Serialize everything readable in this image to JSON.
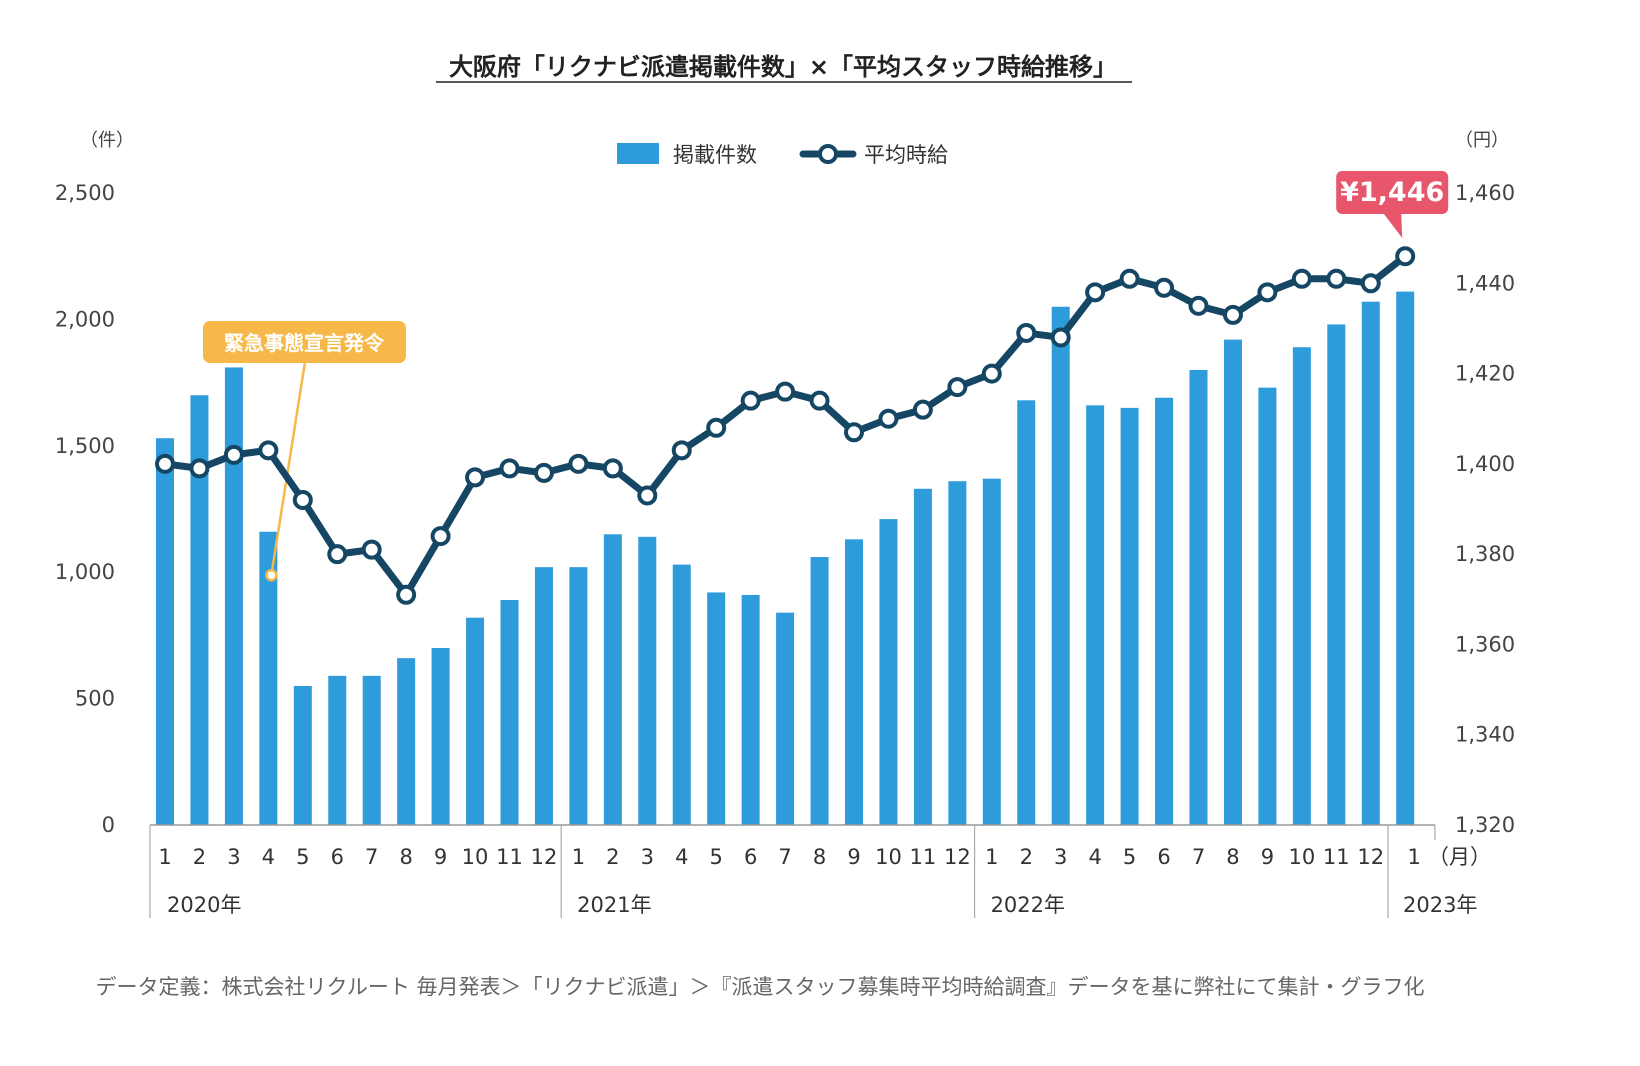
{
  "chart_data": {
    "type": "bar",
    "title": "大阪府「リクナビ派遣掲載件数」×「平均スタッフ時給推移」",
    "left_axis": {
      "unit": "（件）",
      "ylim": [
        0,
        2500
      ],
      "ticks": [
        "2,500",
        "2,000",
        "1,500",
        "1,000",
        "500",
        "0"
      ],
      "tick_values": [
        2500,
        2000,
        1500,
        1000,
        500,
        0
      ]
    },
    "right_axis": {
      "unit": "（円）",
      "ylim": [
        1320,
        1460
      ],
      "ticks": [
        "1,460",
        "1,440",
        "1,420",
        "1,400",
        "1,380",
        "1,360",
        "1,340",
        "1,320"
      ],
      "tick_values": [
        1460,
        1440,
        1420,
        1400,
        1380,
        1360,
        1340,
        1320
      ]
    },
    "month_unit": "（月）",
    "categories": [
      "1",
      "2",
      "3",
      "4",
      "5",
      "6",
      "7",
      "8",
      "9",
      "10",
      "11",
      "12",
      "1",
      "2",
      "3",
      "4",
      "5",
      "6",
      "7",
      "8",
      "9",
      "10",
      "11",
      "12",
      "1",
      "2",
      "3",
      "4",
      "5",
      "6",
      "7",
      "8",
      "9",
      "10",
      "11",
      "12",
      "1"
    ],
    "year_groups": [
      {
        "label": "2020年",
        "start": 0,
        "count": 12
      },
      {
        "label": "2021年",
        "start": 12,
        "count": 12
      },
      {
        "label": "2022年",
        "start": 24,
        "count": 12
      },
      {
        "label": "2023年",
        "start": 36,
        "count": 1
      }
    ],
    "series": [
      {
        "name": "掲載件数",
        "type": "bar",
        "axis": "left",
        "color": "#2e9bdb",
        "values": [
          1530,
          1700,
          1810,
          1160,
          550,
          590,
          590,
          660,
          700,
          820,
          890,
          1020,
          1020,
          1150,
          1140,
          1030,
          920,
          910,
          840,
          1060,
          1130,
          1210,
          1330,
          1360,
          1370,
          1680,
          2050,
          1660,
          1650,
          1690,
          1800,
          1920,
          1730,
          1890,
          1980,
          2070,
          2110
        ]
      },
      {
        "name": "平均時給",
        "type": "line",
        "axis": "right",
        "color": "#154764",
        "values": [
          1400,
          1399,
          1402,
          1403,
          1392,
          1380,
          1381,
          1371,
          1384,
          1397,
          1399,
          1398,
          1400,
          1399,
          1393,
          1403,
          1408,
          1414,
          1416,
          1414,
          1407,
          1410,
          1412,
          1417,
          1420,
          1429,
          1428,
          1438,
          1441,
          1439,
          1435,
          1433,
          1438,
          1441,
          1441,
          1440,
          1446
        ]
      }
    ],
    "annotations": [
      {
        "text": "緊急事態宣言発令",
        "index": 3,
        "color": "#f5b849"
      },
      {
        "text": "¥1,446",
        "index": 36,
        "color": "#e8566b"
      }
    ],
    "legend": {
      "position": "top-center"
    },
    "grid": false
  },
  "footnote": "データ定義：株式会社リクルート 毎月発表＞「リクナビ派遣」＞『派遣スタッフ募集時平均時給調査』データを基に弊社にて集計・グラフ化"
}
